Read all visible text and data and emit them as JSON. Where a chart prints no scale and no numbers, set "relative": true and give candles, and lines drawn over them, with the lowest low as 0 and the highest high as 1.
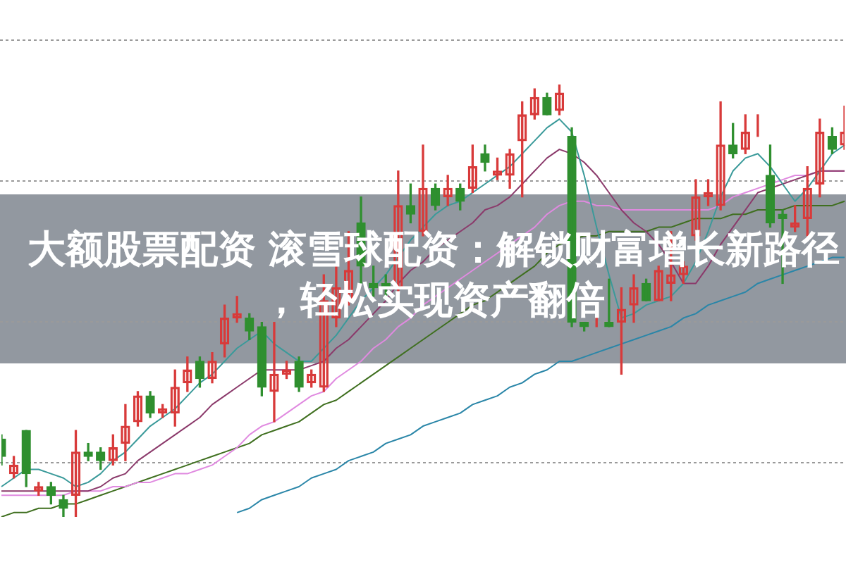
{
  "chart_data": {
    "type": "candlestick",
    "title": "大额股票配资 滚雪球配资：解锁财富增长新路径，轻松实现资产翻倍",
    "relative": true,
    "grid": true,
    "legend": false,
    "categories": [
      null,
      null,
      null,
      null,
      null,
      null,
      null,
      null,
      null,
      null,
      null,
      null,
      null,
      null,
      null,
      null,
      null,
      null,
      null,
      null,
      null,
      null,
      null,
      null,
      null,
      null,
      null,
      null,
      null,
      null,
      null,
      null,
      null,
      null,
      null,
      null,
      null,
      null,
      null,
      null,
      null,
      null,
      null,
      null,
      null,
      null,
      null,
      null,
      null,
      null,
      null,
      null,
      null,
      null,
      null,
      null,
      null,
      null,
      null,
      null,
      null,
      null,
      null,
      null,
      null,
      null,
      null,
      null,
      null
    ],
    "ohlc": [
      [
        0.18,
        0.19,
        0.12,
        0.14
      ],
      [
        0.1,
        0.14,
        0.09,
        0.12
      ],
      [
        0.2,
        0.2,
        0.07,
        0.1
      ],
      [
        0.06,
        0.08,
        0.05,
        0.07
      ],
      [
        0.07,
        0.08,
        0.03,
        0.05
      ],
      [
        0.04,
        0.05,
        0.0,
        0.02
      ],
      [
        0.05,
        0.2,
        0.0,
        0.15
      ],
      [
        0.15,
        0.17,
        0.13,
        0.14
      ],
      [
        0.15,
        0.16,
        0.11,
        0.13
      ],
      [
        0.13,
        0.19,
        0.12,
        0.16
      ],
      [
        0.17,
        0.26,
        0.13,
        0.21
      ],
      [
        0.22,
        0.29,
        0.21,
        0.28
      ],
      [
        0.28,
        0.29,
        0.23,
        0.24
      ],
      [
        0.24,
        0.26,
        0.23,
        0.25
      ],
      [
        0.24,
        0.34,
        0.21,
        0.3
      ],
      [
        0.31,
        0.37,
        0.29,
        0.34
      ],
      [
        0.36,
        0.37,
        0.3,
        0.32
      ],
      [
        0.32,
        0.38,
        0.31,
        0.36
      ],
      [
        0.4,
        0.49,
        0.37,
        0.46
      ],
      [
        0.46,
        0.51,
        0.45,
        0.47
      ],
      [
        0.46,
        0.47,
        0.41,
        0.43
      ],
      [
        0.44,
        0.45,
        0.28,
        0.3
      ],
      [
        0.29,
        0.45,
        0.22,
        0.33
      ],
      [
        0.33,
        0.36,
        0.32,
        0.34
      ],
      [
        0.36,
        0.37,
        0.29,
        0.3
      ],
      [
        0.31,
        0.34,
        0.3,
        0.33
      ],
      [
        0.3,
        0.56,
        0.29,
        0.5
      ],
      [
        0.46,
        0.58,
        0.44,
        0.53
      ],
      [
        0.5,
        0.66,
        0.49,
        0.57
      ],
      [
        0.68,
        0.74,
        0.54,
        0.58
      ],
      [
        0.54,
        0.58,
        0.51,
        0.53
      ],
      [
        0.54,
        0.56,
        0.51,
        0.53
      ],
      [
        0.53,
        0.8,
        0.52,
        0.72
      ],
      [
        0.72,
        0.77,
        0.68,
        0.7
      ],
      [
        0.66,
        0.86,
        0.65,
        0.76
      ],
      [
        0.76,
        0.77,
        0.71,
        0.72
      ],
      [
        0.74,
        0.79,
        0.72,
        0.76
      ],
      [
        0.76,
        0.77,
        0.71,
        0.73
      ],
      [
        0.76,
        0.86,
        0.75,
        0.81
      ],
      [
        0.84,
        0.86,
        0.8,
        0.82
      ],
      [
        0.79,
        0.83,
        0.78,
        0.8
      ],
      [
        0.79,
        0.85,
        0.76,
        0.84
      ],
      [
        0.87,
        0.96,
        0.74,
        0.93
      ],
      [
        0.93,
        0.99,
        0.92,
        0.97
      ],
      [
        0.97,
        0.98,
        0.93,
        0.93
      ],
      [
        0.94,
        1.0,
        0.93,
        0.98
      ],
      [
        0.88,
        0.9,
        0.44,
        0.45
      ],
      [
        0.45,
        0.45,
        0.43,
        0.44
      ],
      [
        0.45,
        0.46,
        0.44,
        0.45
      ],
      [
        0.45,
        0.55,
        0.44,
        0.44
      ],
      [
        0.45,
        0.53,
        0.33,
        0.48
      ],
      [
        0.49,
        0.56,
        0.45,
        0.53
      ],
      [
        0.54,
        0.55,
        0.5,
        0.5
      ],
      [
        0.5,
        0.58,
        0.5,
        0.57
      ],
      [
        0.54,
        0.66,
        0.5,
        0.56
      ],
      [
        0.56,
        0.59,
        0.54,
        0.58
      ],
      [
        0.65,
        0.78,
        0.64,
        0.74
      ],
      [
        0.74,
        0.78,
        0.72,
        0.75
      ],
      [
        0.72,
        0.96,
        0.71,
        0.86
      ],
      [
        0.86,
        0.91,
        0.83,
        0.84
      ],
      [
        0.85,
        0.93,
        0.84,
        0.89
      ],
      [
        0.89,
        0.93,
        0.88,
        0.89
      ],
      [
        0.79,
        0.86,
        0.67,
        0.68
      ],
      [
        0.7,
        0.71,
        0.54,
        0.69
      ],
      [
        0.67,
        0.72,
        0.66,
        0.68
      ],
      [
        0.69,
        0.81,
        0.65,
        0.76
      ],
      [
        0.77,
        0.92,
        0.74,
        0.89
      ],
      [
        0.88,
        0.9,
        0.84,
        0.85
      ],
      [
        0.86,
        0.95,
        0.85,
        0.89
      ]
    ],
    "colors": [
      "#2f8f2f",
      "#d83a3a",
      "#2f8f2f",
      "#d83a3a",
      "#2f8f2f",
      "#2f8f2f",
      "#d83a3a",
      "#2f8f2f",
      "#2f8f2f",
      "#d83a3a",
      "#d83a3a",
      "#d83a3a",
      "#2f8f2f",
      "#d83a3a",
      "#d83a3a",
      "#d83a3a",
      "#2f8f2f",
      "#d83a3a",
      "#d83a3a",
      "#d83a3a",
      "#2f8f2f",
      "#2f8f2f",
      "#d83a3a",
      "#d83a3a",
      "#2f8f2f",
      "#d83a3a",
      "#d83a3a",
      "#d83a3a",
      "#d83a3a",
      "#2f8f2f",
      "#2f8f2f",
      "#2f8f2f",
      "#d83a3a",
      "#2f8f2f",
      "#d83a3a",
      "#2f8f2f",
      "#d83a3a",
      "#2f8f2f",
      "#d83a3a",
      "#2f8f2f",
      "#d83a3a",
      "#d83a3a",
      "#d83a3a",
      "#d83a3a",
      "#2f8f2f",
      "#d83a3a",
      "#2f8f2f",
      "#2f8f2f",
      "#d83a3a",
      "#2f8f2f",
      "#d83a3a",
      "#d83a3a",
      "#2f8f2f",
      "#d83a3a",
      "#d83a3a",
      "#d83a3a",
      "#d83a3a",
      "#d83a3a",
      "#d83a3a",
      "#2f8f2f",
      "#d83a3a",
      "#d83a3a",
      "#2f8f2f",
      "#2f8f2f",
      "#d83a3a",
      "#d83a3a",
      "#d83a3a",
      "#2f8f2f",
      "#d83a3a"
    ],
    "series": [
      {
        "type": "line",
        "color": "#3a9a9a",
        "values": [
          0.07,
          0.09,
          0.11,
          0.11,
          0.1,
          0.09,
          0.07,
          0.08,
          0.1,
          0.13,
          0.15,
          0.18,
          0.21,
          0.23,
          0.25,
          0.28,
          0.31,
          0.33,
          0.36,
          0.39,
          0.41,
          0.43,
          0.4,
          0.38,
          0.36,
          0.36,
          0.39,
          0.42,
          0.46,
          0.5,
          0.53,
          0.56,
          0.6,
          0.64,
          0.67,
          0.7,
          0.72,
          0.73,
          0.75,
          0.77,
          0.79,
          0.81,
          0.84,
          0.87,
          0.9,
          0.92,
          0.89,
          0.79,
          0.67,
          0.56,
          0.46,
          0.47,
          0.49,
          0.5,
          0.51,
          0.54,
          0.59,
          0.66,
          0.74,
          0.8,
          0.83,
          0.84,
          0.81,
          0.77,
          0.73,
          0.76,
          0.8,
          0.84,
          0.86
        ]
      },
      {
        "type": "line",
        "color": "#8b3a6b",
        "values": [
          0.06,
          0.06,
          0.06,
          0.06,
          0.06,
          0.06,
          0.06,
          0.06,
          0.07,
          0.09,
          0.1,
          0.13,
          0.15,
          0.17,
          0.19,
          0.21,
          0.23,
          0.26,
          0.28,
          0.3,
          0.32,
          0.34,
          0.34,
          0.34,
          0.34,
          0.35,
          0.36,
          0.39,
          0.41,
          0.44,
          0.47,
          0.5,
          0.54,
          0.57,
          0.59,
          0.62,
          0.64,
          0.66,
          0.68,
          0.71,
          0.72,
          0.74,
          0.77,
          0.8,
          0.83,
          0.85,
          0.84,
          0.82,
          0.79,
          0.75,
          0.71,
          0.68,
          0.66,
          0.63,
          0.59,
          0.54,
          0.54,
          0.58,
          0.63,
          0.67,
          0.71,
          0.75,
          0.76,
          0.77,
          0.78,
          0.79,
          0.8,
          0.8,
          0.8
        ]
      },
      {
        "type": "line",
        "color": "#e08ae0",
        "values": [
          0.05,
          0.05,
          0.05,
          0.05,
          0.05,
          0.05,
          0.06,
          0.06,
          0.06,
          0.07,
          0.07,
          0.08,
          0.08,
          0.09,
          0.1,
          0.1,
          0.11,
          0.12,
          0.14,
          0.16,
          0.19,
          0.21,
          0.22,
          0.24,
          0.26,
          0.28,
          0.29,
          0.32,
          0.34,
          0.36,
          0.39,
          0.41,
          0.44,
          0.46,
          0.49,
          0.51,
          0.53,
          0.55,
          0.57,
          0.59,
          0.61,
          0.63,
          0.65,
          0.67,
          0.7,
          0.72,
          0.73,
          0.73,
          0.72,
          0.72,
          0.71,
          0.71,
          0.71,
          0.71,
          0.71,
          0.71,
          0.71,
          0.71,
          0.72,
          0.74,
          0.75,
          0.76,
          0.77,
          0.78,
          0.79,
          0.79,
          0.8,
          0.8,
          0.8
        ]
      },
      {
        "type": "line",
        "color": "#3f6f1f",
        "values": [
          0.0,
          0.01,
          0.01,
          0.02,
          0.02,
          0.03,
          0.03,
          0.04,
          0.05,
          0.06,
          0.07,
          0.08,
          0.09,
          0.1,
          0.11,
          0.12,
          0.13,
          0.14,
          0.15,
          0.16,
          0.17,
          0.19,
          0.2,
          0.21,
          0.22,
          0.24,
          0.26,
          0.27,
          0.29,
          0.31,
          0.33,
          0.35,
          0.37,
          0.39,
          0.41,
          0.43,
          0.45,
          0.47,
          0.49,
          0.5,
          0.52,
          0.54,
          0.56,
          0.58,
          0.61,
          0.63,
          0.64,
          0.65,
          0.65,
          0.66,
          0.66,
          0.66,
          0.66,
          0.67,
          0.67,
          0.68,
          0.69,
          0.69,
          0.69,
          0.7,
          0.7,
          0.71,
          0.71,
          0.71,
          0.72,
          0.72,
          0.72,
          0.72,
          0.73
        ]
      },
      {
        "type": "line",
        "color": "#2a86a8",
        "values": [
          null,
          null,
          null,
          null,
          null,
          null,
          null,
          null,
          null,
          null,
          null,
          null,
          null,
          null,
          null,
          null,
          null,
          null,
          null,
          0.01,
          0.02,
          0.04,
          0.05,
          0.06,
          0.07,
          0.09,
          0.1,
          0.11,
          0.13,
          0.14,
          0.15,
          0.17,
          0.18,
          0.19,
          0.21,
          0.22,
          0.23,
          0.24,
          0.26,
          0.27,
          0.28,
          0.3,
          0.31,
          0.33,
          0.34,
          0.36,
          0.36,
          0.37,
          0.38,
          0.39,
          0.4,
          0.41,
          0.42,
          0.43,
          0.44,
          0.46,
          0.47,
          0.49,
          0.5,
          0.51,
          0.52,
          0.54,
          0.55,
          0.56,
          0.57,
          0.58,
          0.59,
          0.6,
          0.6
        ]
      }
    ]
  }
}
